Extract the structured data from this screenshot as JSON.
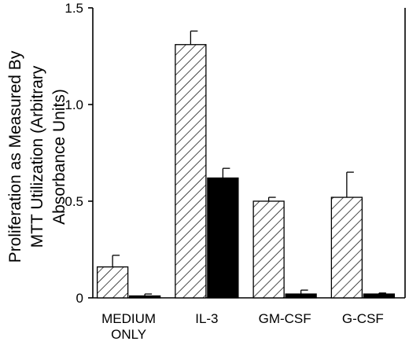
{
  "chart_data": {
    "type": "bar",
    "title": "",
    "xlabel": "",
    "ylabel_lines": [
      "Proliferation as Measured By",
      "MTT Utilization (Arbitrary",
      "Absorbance Units)"
    ],
    "ylim": [
      0,
      1.5
    ],
    "yticks": [
      "0",
      "0.5",
      "1.0",
      "1.5"
    ],
    "categories": [
      [
        "MEDIUM",
        "ONLY"
      ],
      [
        "IL-3"
      ],
      [
        "GM-CSF"
      ],
      [
        "G-CSF"
      ]
    ],
    "series": [
      {
        "fill": "hatched",
        "values": [
          0.16,
          1.31,
          0.5,
          0.52
        ],
        "errors": [
          0.06,
          0.07,
          0.02,
          0.13
        ]
      },
      {
        "fill": "solid",
        "values": [
          0.01,
          0.62,
          0.02,
          0.02
        ],
        "errors": [
          0.01,
          0.05,
          0.02,
          0.005
        ]
      }
    ],
    "grid": false,
    "legend": "none",
    "colors": {
      "axis": "#000000",
      "solid_bar": "#000000",
      "hatched_bar_fill": "#ffffff",
      "hatch_stroke": "#000000"
    }
  }
}
